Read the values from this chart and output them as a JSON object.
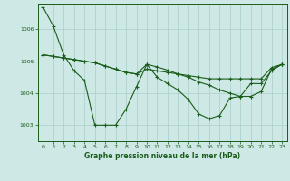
{
  "title": "Graphe pression niveau de la mer (hPa)",
  "bg_color": "#cde8e5",
  "plot_bg_color": "#cde8e5",
  "line_color": "#1a5c1a",
  "grid_color": "#aacfcc",
  "ylim": [
    1002.5,
    1006.8
  ],
  "yticks": [
    1003,
    1004,
    1005,
    1006
  ],
  "xlim": [
    -0.5,
    23.5
  ],
  "xticks": [
    0,
    1,
    2,
    3,
    4,
    5,
    6,
    7,
    8,
    9,
    10,
    11,
    12,
    13,
    14,
    15,
    16,
    17,
    18,
    19,
    20,
    21,
    22,
    23
  ],
  "series1": [
    1006.7,
    1006.1,
    1005.2,
    1004.7,
    1004.4,
    1003.0,
    1003.0,
    1003.0,
    1003.5,
    1004.2,
    1004.9,
    1004.5,
    1004.3,
    1004.1,
    1003.8,
    1003.35,
    1003.2,
    1003.3,
    1003.85,
    1003.9,
    1004.3,
    1004.3,
    1004.7,
    1004.9
  ],
  "series2": [
    1005.2,
    1005.15,
    1005.1,
    1005.05,
    1005.0,
    1004.95,
    1004.85,
    1004.75,
    1004.65,
    1004.6,
    1004.75,
    1004.7,
    1004.65,
    1004.6,
    1004.55,
    1004.5,
    1004.45,
    1004.45,
    1004.45,
    1004.45,
    1004.45,
    1004.45,
    1004.8,
    1004.9
  ],
  "series3": [
    1005.2,
    1005.15,
    1005.1,
    1005.05,
    1005.0,
    1004.95,
    1004.85,
    1004.75,
    1004.65,
    1004.6,
    1004.9,
    1004.82,
    1004.72,
    1004.6,
    1004.5,
    1004.35,
    1004.25,
    1004.1,
    1004.0,
    1003.9,
    1003.9,
    1004.05,
    1004.75,
    1004.9
  ],
  "xlabel_fontsize": 5.5,
  "tick_fontsize": 4.5,
  "linewidth": 0.8,
  "markersize": 2.5
}
